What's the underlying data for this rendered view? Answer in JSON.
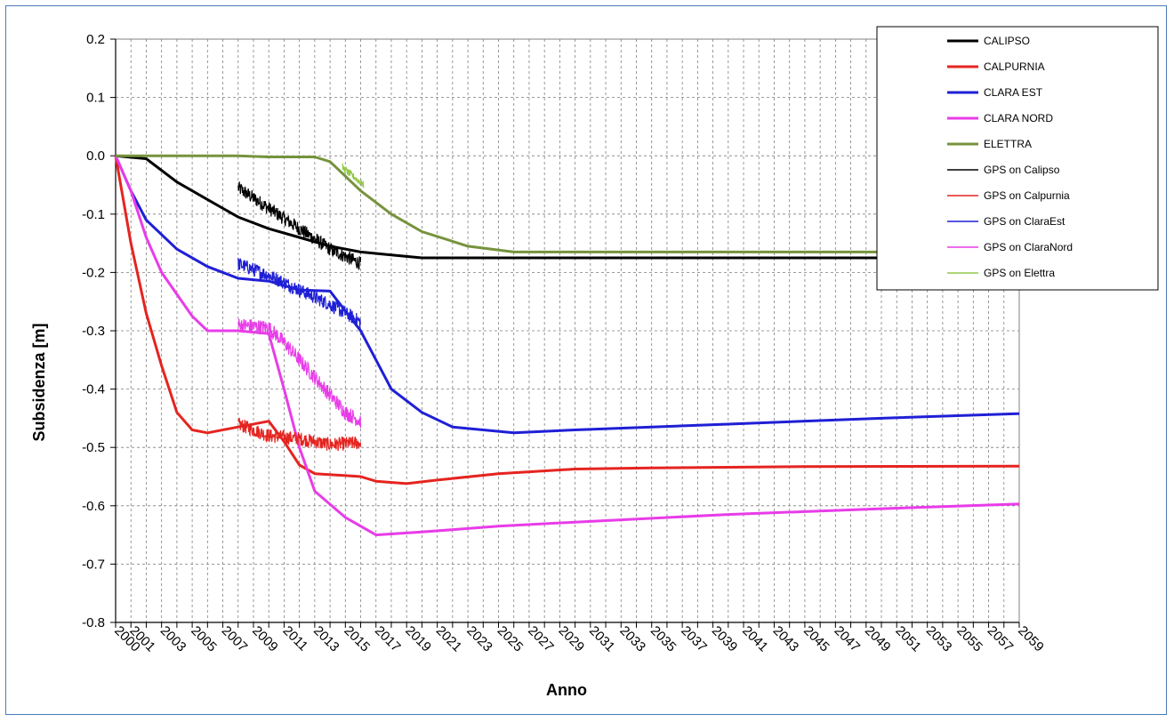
{
  "chart_data": {
    "type": "line",
    "title": "",
    "xlabel": "Anno",
    "ylabel": "Subsidenza [m]",
    "xlim": [
      2000,
      2059
    ],
    "ylim": [
      -0.8,
      0.2
    ],
    "grid": true,
    "legend_position": "top-right",
    "x_tick_labels": [
      "2000",
      "2001",
      "2003",
      "2005",
      "2007",
      "2009",
      "2011",
      "2013",
      "2015",
      "2017",
      "2019",
      "2021",
      "2023",
      "2025",
      "2027",
      "2029",
      "2031",
      "2033",
      "2035",
      "2037",
      "2039",
      "2041",
      "2043",
      "2045",
      "2047",
      "2049",
      "2051",
      "2053",
      "2055",
      "2057",
      "2059"
    ],
    "y_tick_labels": [
      "0.2",
      "0.1",
      "0.0",
      "-0.1",
      "-0.2",
      "-0.3",
      "-0.4",
      "-0.5",
      "-0.6",
      "-0.7",
      "-0.8"
    ],
    "y_ticks": [
      0.2,
      0.1,
      0.0,
      -0.1,
      -0.2,
      -0.3,
      -0.4,
      -0.5,
      -0.6,
      -0.7,
      -0.8
    ],
    "series": [
      {
        "name": "CALIPSO",
        "color": "#000000",
        "kind": "model",
        "points": [
          [
            2000,
            0
          ],
          [
            2002,
            -0.005
          ],
          [
            2004,
            -0.045
          ],
          [
            2006,
            -0.075
          ],
          [
            2008,
            -0.105
          ],
          [
            2010,
            -0.125
          ],
          [
            2012,
            -0.14
          ],
          [
            2014,
            -0.155
          ],
          [
            2016,
            -0.165
          ],
          [
            2018,
            -0.17
          ],
          [
            2020,
            -0.175
          ],
          [
            2025,
            -0.175
          ],
          [
            2040,
            -0.175
          ],
          [
            2059,
            -0.175
          ]
        ]
      },
      {
        "name": "CALPURNIA",
        "color": "#e52420",
        "kind": "model",
        "points": [
          [
            2000,
            0
          ],
          [
            2001,
            -0.15
          ],
          [
            2002,
            -0.27
          ],
          [
            2003,
            -0.36
          ],
          [
            2004,
            -0.44
          ],
          [
            2005,
            -0.47
          ],
          [
            2006,
            -0.475
          ],
          [
            2008,
            -0.465
          ],
          [
            2010,
            -0.455
          ],
          [
            2011,
            -0.49
          ],
          [
            2012,
            -0.53
          ],
          [
            2013,
            -0.545
          ],
          [
            2016,
            -0.55
          ],
          [
            2017,
            -0.558
          ],
          [
            2019,
            -0.562
          ],
          [
            2021,
            -0.556
          ],
          [
            2025,
            -0.545
          ],
          [
            2030,
            -0.537
          ],
          [
            2035,
            -0.535
          ],
          [
            2045,
            -0.533
          ],
          [
            2059,
            -0.532
          ]
        ]
      },
      {
        "name": "CLARA EST",
        "color": "#1f1fd6",
        "kind": "model",
        "points": [
          [
            2000,
            0
          ],
          [
            2001,
            -0.06
          ],
          [
            2002,
            -0.11
          ],
          [
            2004,
            -0.16
          ],
          [
            2006,
            -0.19
          ],
          [
            2008,
            -0.21
          ],
          [
            2010,
            -0.215
          ],
          [
            2012,
            -0.23
          ],
          [
            2014,
            -0.232
          ],
          [
            2016,
            -0.3
          ],
          [
            2018,
            -0.4
          ],
          [
            2020,
            -0.44
          ],
          [
            2022,
            -0.465
          ],
          [
            2026,
            -0.475
          ],
          [
            2030,
            -0.47
          ],
          [
            2040,
            -0.46
          ],
          [
            2050,
            -0.45
          ],
          [
            2059,
            -0.442
          ]
        ]
      },
      {
        "name": "CLARA NORD",
        "color": "#e83ce8",
        "kind": "model",
        "points": [
          [
            2000,
            0
          ],
          [
            2001,
            -0.06
          ],
          [
            2002,
            -0.14
          ],
          [
            2003,
            -0.2
          ],
          [
            2005,
            -0.275
          ],
          [
            2006,
            -0.3
          ],
          [
            2008,
            -0.3
          ],
          [
            2010,
            -0.305
          ],
          [
            2011,
            -0.4
          ],
          [
            2012,
            -0.5
          ],
          [
            2013,
            -0.575
          ],
          [
            2015,
            -0.62
          ],
          [
            2017,
            -0.65
          ],
          [
            2020,
            -0.645
          ],
          [
            2025,
            -0.635
          ],
          [
            2030,
            -0.628
          ],
          [
            2040,
            -0.615
          ],
          [
            2050,
            -0.605
          ],
          [
            2059,
            -0.597
          ]
        ]
      },
      {
        "name": "ELETTRA",
        "color": "#76933c",
        "kind": "model",
        "points": [
          [
            2000,
            0
          ],
          [
            2008,
            0
          ],
          [
            2010,
            -0.002
          ],
          [
            2013,
            -0.002
          ],
          [
            2014,
            -0.01
          ],
          [
            2016,
            -0.06
          ],
          [
            2018,
            -0.1
          ],
          [
            2020,
            -0.13
          ],
          [
            2023,
            -0.155
          ],
          [
            2026,
            -0.165
          ],
          [
            2059,
            -0.165
          ]
        ]
      },
      {
        "name": "GPS on Calipso",
        "color": "#000000",
        "kind": "gps",
        "points": [
          [
            2008,
            -0.055
          ],
          [
            2010,
            -0.09
          ],
          [
            2012,
            -0.125
          ],
          [
            2014,
            -0.16
          ],
          [
            2016,
            -0.185
          ]
        ],
        "noise": 0.012
      },
      {
        "name": "GPS on Calpurnia",
        "color": "#e52420",
        "kind": "gps",
        "points": [
          [
            2008,
            -0.46
          ],
          [
            2010,
            -0.48
          ],
          [
            2012,
            -0.485
          ],
          [
            2014,
            -0.495
          ],
          [
            2016,
            -0.492
          ]
        ],
        "noise": 0.012
      },
      {
        "name": "GPS on ClaraEst",
        "color": "#1f1fd6",
        "kind": "gps",
        "points": [
          [
            2008,
            -0.185
          ],
          [
            2010,
            -0.205
          ],
          [
            2012,
            -0.23
          ],
          [
            2014,
            -0.255
          ],
          [
            2016,
            -0.285
          ]
        ],
        "noise": 0.012
      },
      {
        "name": "GPS on ClaraNord",
        "color": "#e83ce8",
        "kind": "gps",
        "points": [
          [
            2008,
            -0.29
          ],
          [
            2010,
            -0.295
          ],
          [
            2011,
            -0.32
          ],
          [
            2013,
            -0.38
          ],
          [
            2015,
            -0.44
          ],
          [
            2016,
            -0.455
          ]
        ],
        "noise": 0.013
      },
      {
        "name": "GPS on Elettra",
        "color": "#93c84a",
        "kind": "gps",
        "points": [
          [
            2014.8,
            -0.02
          ],
          [
            2016.2,
            -0.05
          ]
        ],
        "noise": 0.006
      }
    ]
  }
}
